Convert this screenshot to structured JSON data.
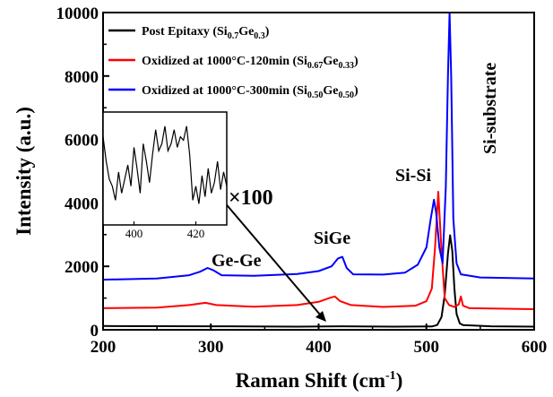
{
  "chart_data": {
    "type": "line",
    "xlabel": "Raman Shift (cm",
    "xlabel_sup": "-1",
    "xlabel_close": ")",
    "ylabel": "Intensity (a.u.)",
    "xlim": [
      200,
      600
    ],
    "ylim": [
      0,
      10000
    ],
    "xticks": [
      "200",
      "300",
      "400",
      "500",
      "600"
    ],
    "yticks": [
      "0",
      "2000",
      "4000",
      "6000",
      "8000",
      "10000"
    ],
    "grid": false,
    "legend_position": "top-left",
    "series": [
      {
        "legend_parts": [
          {
            "t": "Post Epitaxy (Si"
          },
          {
            "t": "0.7",
            "sub": true
          },
          {
            "t": "Ge"
          },
          {
            "t": "0.3",
            "sub": true
          },
          {
            "t": ")"
          }
        ],
        "color": "#000000",
        "points": [
          [
            200,
            120
          ],
          [
            300,
            110
          ],
          [
            380,
            100
          ],
          [
            420,
            110
          ],
          [
            470,
            100
          ],
          [
            505,
            105
          ],
          [
            510,
            150
          ],
          [
            514,
            400
          ],
          [
            517,
            1100
          ],
          [
            520,
            2400
          ],
          [
            522,
            2980
          ],
          [
            524,
            2500
          ],
          [
            526,
            1300
          ],
          [
            528,
            500
          ],
          [
            531,
            200
          ],
          [
            534,
            150
          ],
          [
            560,
            110
          ],
          [
            600,
            100
          ]
        ]
      },
      {
        "legend_parts": [
          {
            "t": "Oxidized at 1000°C-120min (Si"
          },
          {
            "t": "0.67",
            "sub": true
          },
          {
            "t": "Ge"
          },
          {
            "t": "0.33",
            "sub": true
          },
          {
            "t": ")"
          }
        ],
        "color": "#ff0000",
        "points": [
          [
            200,
            680
          ],
          [
            250,
            700
          ],
          [
            280,
            780
          ],
          [
            295,
            850
          ],
          [
            305,
            780
          ],
          [
            340,
            730
          ],
          [
            380,
            780
          ],
          [
            400,
            880
          ],
          [
            410,
            1000
          ],
          [
            415,
            1050
          ],
          [
            420,
            900
          ],
          [
            430,
            780
          ],
          [
            460,
            720
          ],
          [
            490,
            760
          ],
          [
            500,
            900
          ],
          [
            505,
            1300
          ],
          [
            508,
            2600
          ],
          [
            511,
            4350
          ],
          [
            514,
            2500
          ],
          [
            517,
            1000
          ],
          [
            521,
            780
          ],
          [
            526,
            720
          ],
          [
            530,
            800
          ],
          [
            532,
            1050
          ],
          [
            534,
            760
          ],
          [
            540,
            680
          ],
          [
            600,
            650
          ]
        ]
      },
      {
        "legend_parts": [
          {
            "t": "Oxidized at 1000°C-300min (Si"
          },
          {
            "t": "0.50",
            "sub": true
          },
          {
            "t": "Ge"
          },
          {
            "t": "0.50",
            "sub": true
          },
          {
            "t": ")"
          }
        ],
        "color": "#0000ff",
        "points": [
          [
            200,
            1580
          ],
          [
            250,
            1620
          ],
          [
            280,
            1720
          ],
          [
            290,
            1830
          ],
          [
            297,
            1950
          ],
          [
            302,
            1880
          ],
          [
            310,
            1720
          ],
          [
            340,
            1700
          ],
          [
            380,
            1760
          ],
          [
            400,
            1850
          ],
          [
            412,
            2000
          ],
          [
            418,
            2250
          ],
          [
            422,
            2300
          ],
          [
            426,
            1950
          ],
          [
            432,
            1750
          ],
          [
            460,
            1740
          ],
          [
            480,
            1800
          ],
          [
            492,
            2050
          ],
          [
            500,
            2600
          ],
          [
            504,
            3500
          ],
          [
            507,
            4100
          ],
          [
            509,
            3700
          ],
          [
            512,
            2600
          ],
          [
            515,
            2100
          ],
          [
            518,
            4500
          ],
          [
            520,
            8000
          ],
          [
            521.5,
            10000
          ],
          [
            523,
            8000
          ],
          [
            525,
            3500
          ],
          [
            528,
            2100
          ],
          [
            532,
            1750
          ],
          [
            550,
            1650
          ],
          [
            600,
            1620
          ]
        ]
      }
    ],
    "annotations": [
      "Ge-Ge",
      "SiGe",
      "Si-Si",
      "Si-substrate",
      "×100"
    ],
    "inset": {
      "xlim": [
        390,
        430
      ],
      "xticks": [
        "400",
        "420"
      ],
      "points": [
        [
          390,
          6000
        ],
        [
          391,
          5300
        ],
        [
          392,
          4800
        ],
        [
          393,
          4600
        ],
        [
          394,
          4200
        ],
        [
          395,
          5000
        ],
        [
          396,
          4400
        ],
        [
          397,
          4800
        ],
        [
          398,
          5200
        ],
        [
          399,
          4600
        ],
        [
          400,
          5700
        ],
        [
          401,
          5100
        ],
        [
          402,
          4400
        ],
        [
          403,
          5800
        ],
        [
          404,
          5300
        ],
        [
          405,
          4700
        ],
        [
          406,
          5500
        ],
        [
          407,
          6200
        ],
        [
          408,
          5600
        ],
        [
          409,
          5800
        ],
        [
          410,
          6300
        ],
        [
          411,
          5600
        ],
        [
          412,
          5800
        ],
        [
          413,
          6200
        ],
        [
          414,
          5700
        ],
        [
          415,
          6000
        ],
        [
          416,
          5900
        ],
        [
          417,
          6300
        ],
        [
          418,
          5500
        ],
        [
          419,
          4200
        ],
        [
          420,
          4600
        ],
        [
          421,
          4100
        ],
        [
          422,
          4900
        ],
        [
          423,
          4300
        ],
        [
          424,
          5100
        ],
        [
          425,
          4400
        ],
        [
          426,
          4700
        ],
        [
          427,
          5300
        ],
        [
          428,
          4500
        ],
        [
          429,
          5000
        ],
        [
          430,
          4600
        ]
      ]
    }
  }
}
